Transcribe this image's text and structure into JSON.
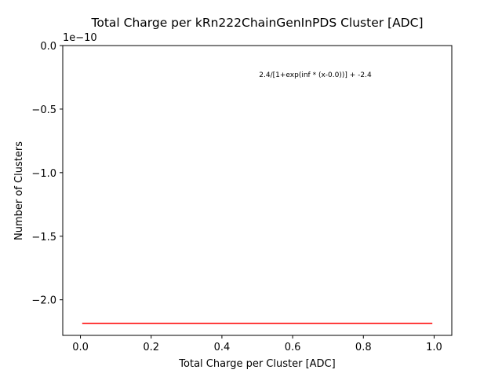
{
  "chart_data": {
    "type": "line",
    "title": "Total Charge per kRn222ChainGenInPDS Cluster [ADC]",
    "xlabel": "Total Charge per Cluster [ADC]",
    "ylabel": "Number of Clusters",
    "offset_text": "1e−10",
    "annotation": "2.4/[1+exp(inf * (x-0.0))] + -2.4",
    "xlim": [
      -0.05,
      1.05
    ],
    "ylim": [
      -2.28e-10,
      0.0
    ],
    "x_ticks": [
      0.0,
      0.2,
      0.4,
      0.6,
      0.8,
      1.0
    ],
    "x_tick_labels": [
      "0.0",
      "0.2",
      "0.4",
      "0.6",
      "0.8",
      "1.0"
    ],
    "y_ticks": [
      0.0,
      -5e-11,
      -1e-10,
      -1.5e-10,
      -2e-10
    ],
    "y_tick_labels": [
      "0.0",
      "−0.5",
      "−1.0",
      "−1.5",
      "−2.0"
    ],
    "grid": false,
    "series": [
      {
        "color": "#ff0000",
        "x": [
          0.005,
          0.995
        ],
        "y": [
          -2.185e-10,
          -2.185e-10
        ]
      }
    ]
  }
}
